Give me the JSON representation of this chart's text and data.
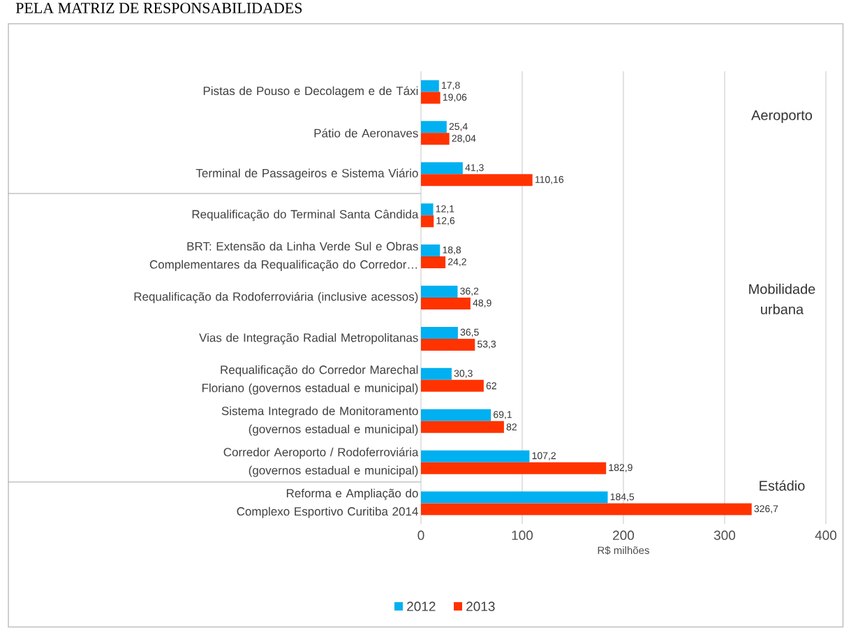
{
  "chart_data": {
    "type": "bar",
    "orientation": "horizontal",
    "title": "PELA MATRIZ DE RESPONSABILIDADES",
    "categories": [
      "Pistas de Pouso e Decolagem e de Táxi",
      "Pátio de Aeronaves",
      "Terminal de Passageiros e Sistema Viário",
      "Requalificação do Terminal Santa Cândida",
      "BRT: Extensão da Linha Verde Sul e Obras Complementares da Requalificação do Corredor…",
      "Requalificação da Rodoferroviária (inclusive acessos)",
      "Vias de Integração Radial Metropolitanas",
      "Requalificação do Corredor Marechal Floriano (governos estadual e municipal)",
      "Sistema Integrado de Monitoramento (governos estadual e municipal)",
      "Corredor Aeroporto / Rodoferroviária (governos estadual e municipal)",
      "Reforma e Ampliação do Complexo Esportivo Curitiba 2014"
    ],
    "series": [
      {
        "name": "2012",
        "color": "#00b0f0",
        "values": [
          17.8,
          25.4,
          41.3,
          12.1,
          18.8,
          36.2,
          36.5,
          30.3,
          69.1,
          107.2,
          184.5
        ]
      },
      {
        "name": "2013",
        "color": "#ff3300",
        "values": [
          19.06,
          28.04,
          110.16,
          12.6,
          24.2,
          48.9,
          53.3,
          62,
          82,
          182.9,
          326.7
        ]
      }
    ],
    "value_labels": [
      [
        "17,8",
        "25,4",
        "41,3",
        "12,1",
        "18,8",
        "36,2",
        "36,5",
        "30,3",
        "69,1",
        "107,2",
        "184,5"
      ],
      [
        "19,06",
        "28,04",
        "110,16",
        "12,6",
        "24,2",
        "48,9",
        "53,3",
        "62",
        "82",
        "182,9",
        "326,7"
      ]
    ],
    "xlabel": "R$ milhões",
    "xlim": [
      0,
      400
    ],
    "xticks": [
      0,
      100,
      200,
      300,
      400
    ],
    "grid": "x",
    "legend": "bottom",
    "annotations": [
      "Aeroporto",
      "Mobilidade urbana",
      "Estádio"
    ]
  }
}
